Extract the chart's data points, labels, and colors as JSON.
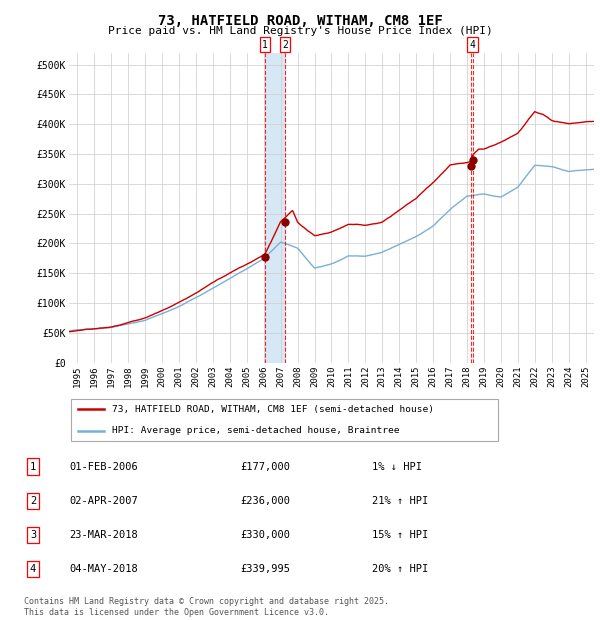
{
  "title": "73, HATFIELD ROAD, WITHAM, CM8 1EF",
  "subtitle": "Price paid vs. HM Land Registry's House Price Index (HPI)",
  "xlim": [
    1994.5,
    2025.5
  ],
  "ylim": [
    0,
    520000
  ],
  "yticks": [
    0,
    50000,
    100000,
    150000,
    200000,
    250000,
    300000,
    350000,
    400000,
    450000,
    500000
  ],
  "ytick_labels": [
    "£0",
    "£50K",
    "£100K",
    "£150K",
    "£200K",
    "£250K",
    "£300K",
    "£350K",
    "£400K",
    "£450K",
    "£500K"
  ],
  "xticks": [
    1995,
    1996,
    1997,
    1998,
    1999,
    2000,
    2001,
    2002,
    2003,
    2004,
    2005,
    2006,
    2007,
    2008,
    2009,
    2010,
    2011,
    2012,
    2013,
    2014,
    2015,
    2016,
    2017,
    2018,
    2019,
    2020,
    2021,
    2022,
    2023,
    2024,
    2025
  ],
  "sale1_date": 2006.08,
  "sale1_price": 177000,
  "sale2_date": 2007.25,
  "sale2_price": 236000,
  "sale3_date": 2018.22,
  "sale3_price": 330000,
  "sale4_date": 2018.33,
  "sale4_price": 339995,
  "sale_color": "#cc0000",
  "hpi_color": "#7ab0d4",
  "background_color": "#ffffff",
  "grid_color": "#cccccc",
  "legend_label_red": "73, HATFIELD ROAD, WITHAM, CM8 1EF (semi-detached house)",
  "legend_label_blue": "HPI: Average price, semi-detached house, Braintree",
  "table_rows": [
    {
      "num": "1",
      "date": "01-FEB-2006",
      "price": "£177,000",
      "change": "1% ↓ HPI"
    },
    {
      "num": "2",
      "date": "02-APR-2007",
      "price": "£236,000",
      "change": "21% ↑ HPI"
    },
    {
      "num": "3",
      "date": "23-MAR-2018",
      "price": "£330,000",
      "change": "15% ↑ HPI"
    },
    {
      "num": "4",
      "date": "04-MAY-2018",
      "price": "£339,995",
      "change": "20% ↑ HPI"
    }
  ],
  "footer": "Contains HM Land Registry data © Crown copyright and database right 2025.\nThis data is licensed under the Open Government Licence v3.0.",
  "vspan_x1": 2006.08,
  "vspan_x2": 2007.25,
  "vspan_color": "#d6e8f5",
  "vline1": 2006.08,
  "vline2": 2007.25,
  "vline3": 2018.22,
  "vline4": 2018.33
}
